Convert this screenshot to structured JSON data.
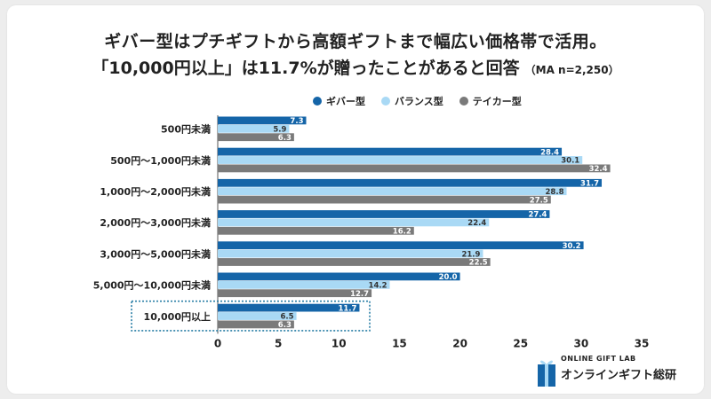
{
  "title_line1": "ギバー型はプチギフトから高額ギフトまで幅広い価格帯で活用。",
  "title_line2": "「10,000円以上」は11.7%が贈ったことがあると回答",
  "title_note": "（MA n=2,250）",
  "logo": {
    "sub": "ONLINE GIFT LAB",
    "main": "オンラインギフト総研"
  },
  "chart_data": {
    "type": "bar",
    "orientation": "horizontal",
    "title": "ギバー型はプチギフトから高額ギフトまで幅広い価格帯で活用。「10,000円以上」は11.7%が贈ったことがあると回答",
    "note": "（MA n=2,250）",
    "categories": [
      "500円未満",
      "500円〜1,000円未満",
      "1,000円〜2,000円未満",
      "2,000円〜3,000円未満",
      "3,000円〜5,000円未満",
      "5,000円〜10,000円未満",
      "10,000円以上"
    ],
    "series": [
      {
        "name": "ギバー型",
        "color": "#1565a8",
        "values": [
          7.3,
          28.4,
          31.7,
          27.4,
          30.2,
          20.0,
          11.7
        ]
      },
      {
        "name": "バランス型",
        "color": "#a9d9f5",
        "values": [
          5.9,
          30.1,
          28.8,
          22.4,
          21.9,
          14.2,
          6.5
        ]
      },
      {
        "name": "テイカー型",
        "color": "#7a7a7a",
        "values": [
          6.3,
          32.4,
          27.5,
          16.2,
          22.5,
          12.7,
          6.3
        ]
      }
    ],
    "value_labels": [
      [
        "7.3",
        "28.4",
        "31.7",
        "27.4",
        "30.2",
        "20.0",
        "11.7"
      ],
      [
        "5.9",
        "30.1",
        "28.8",
        "22.4",
        "21.9",
        "14.2",
        "6.5"
      ],
      [
        "6.3",
        "32.4",
        "27.5",
        "16.2",
        "22.5",
        "12.7",
        "6.3"
      ]
    ],
    "xlim": [
      0,
      35
    ],
    "xticks": [
      "0",
      "5",
      "10",
      "15",
      "20",
      "25",
      "30",
      "35"
    ],
    "grid": false,
    "legend": "top",
    "highlight_category": "10,000円以上"
  }
}
